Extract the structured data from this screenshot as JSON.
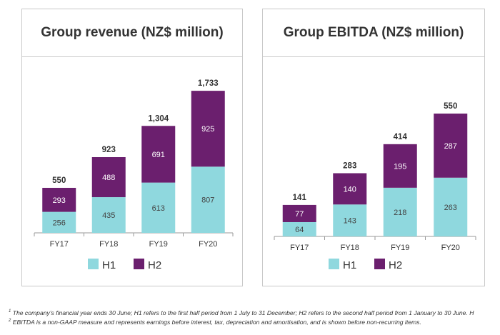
{
  "colors": {
    "h1": "#8fd8de",
    "h2": "#6b1f6e",
    "axis": "#9a9a9a",
    "text": "#333333"
  },
  "chart_data": [
    {
      "type": "bar",
      "stacked": true,
      "title": "Group revenue (NZ$ million)",
      "categories": [
        "FY17",
        "FY18",
        "FY19",
        "FY20"
      ],
      "series": [
        {
          "name": "H1",
          "values": [
            256,
            435,
            613,
            807
          ]
        },
        {
          "name": "H2",
          "values": [
            293,
            488,
            691,
            925
          ]
        }
      ],
      "totals": [
        "550",
        "923",
        "1,304",
        "1,733"
      ],
      "ylim": [
        0,
        1733
      ],
      "legend": "bottom",
      "grid": false
    },
    {
      "type": "bar",
      "stacked": true,
      "title": "Group EBITDA (NZ$ million)",
      "categories": [
        "FY17",
        "FY18",
        "FY19",
        "FY20"
      ],
      "series": [
        {
          "name": "H1",
          "values": [
            64,
            143,
            218,
            263
          ]
        },
        {
          "name": "H2",
          "values": [
            77,
            140,
            195,
            287
          ]
        }
      ],
      "totals": [
        "141",
        "283",
        "414",
        "550"
      ],
      "ylim": [
        0,
        550
      ],
      "legend": "bottom",
      "grid": false
    }
  ],
  "footnotes": {
    "n1": "1",
    "text1": "The company’s financial year ends 30 June; H1 refers to the first half period from 1 July to 31 December; H2 refers to the second half period from 1 January to 30 June. H",
    "n2": "2",
    "text2": "EBITDA is a non-GAAP measure and represents earnings before interest, tax, depreciation and amortisation, and is shown before non-recurring items."
  }
}
